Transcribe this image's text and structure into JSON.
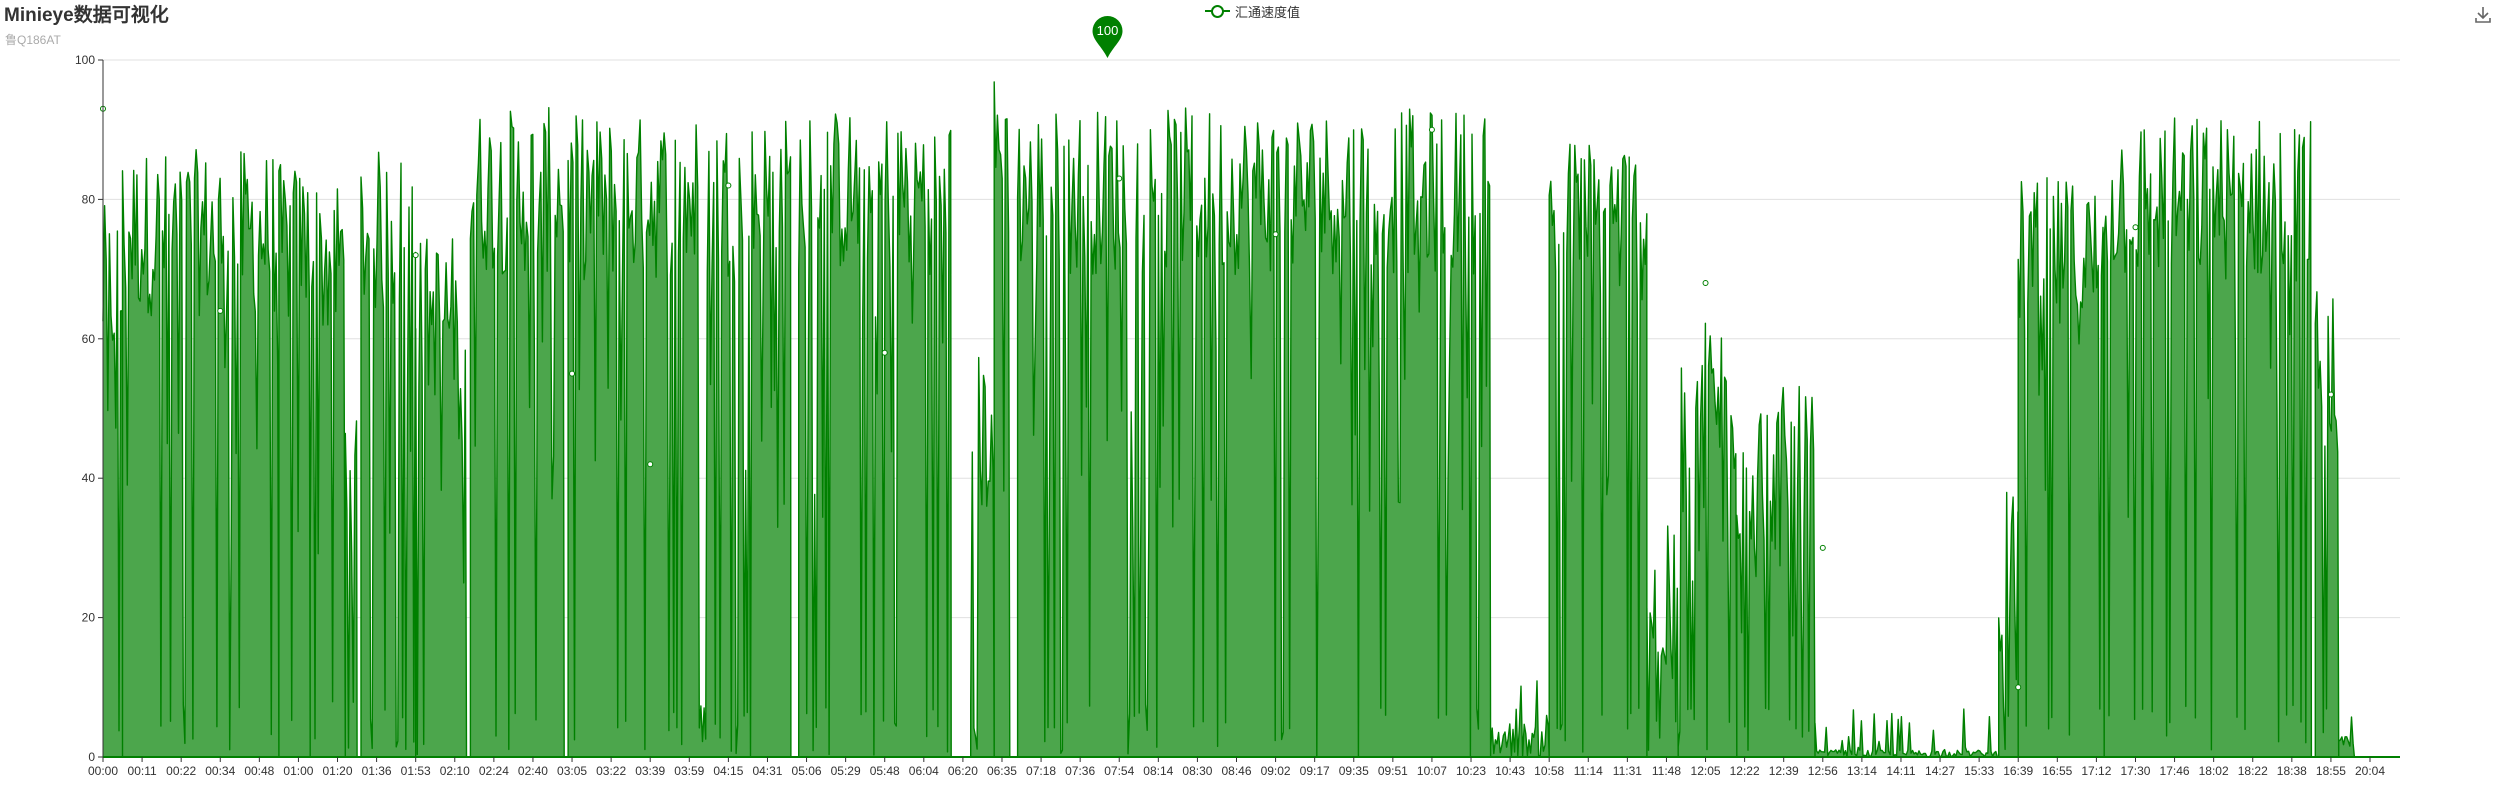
{
  "title": "Minieye数据可视化",
  "subtitle": "鲁Q186AT",
  "legend": {
    "label": "汇通速度值",
    "position": "top-center"
  },
  "toolbox": {
    "icon": "download-icon"
  },
  "colors": {
    "series": "#008000",
    "area": "#4ca64c",
    "grid": "#e0e0e0",
    "axis": "#333333"
  },
  "chart_data": {
    "type": "area",
    "title": "Minieye数据可视化",
    "subtitle": "鲁Q186AT",
    "xlabel": "",
    "ylabel": "",
    "ylim": [
      0,
      100
    ],
    "y_ticks": [
      0,
      20,
      40,
      60,
      80,
      100
    ],
    "grid": true,
    "legend_position": "top-center",
    "x_ticks": [
      "00:00",
      "00:11",
      "00:22",
      "00:34",
      "00:48",
      "01:00",
      "01:20",
      "01:36",
      "01:53",
      "02:10",
      "02:24",
      "02:40",
      "03:05",
      "03:22",
      "03:39",
      "03:59",
      "04:15",
      "04:31",
      "05:06",
      "05:29",
      "05:48",
      "06:04",
      "06:20",
      "06:35",
      "07:18",
      "07:36",
      "07:54",
      "08:14",
      "08:30",
      "08:46",
      "09:02",
      "09:17",
      "09:35",
      "09:51",
      "10:07",
      "10:23",
      "10:43",
      "10:58",
      "11:14",
      "11:31",
      "11:48",
      "12:05",
      "12:22",
      "12:39",
      "12:56",
      "13:14",
      "14:11",
      "14:27",
      "15:33",
      "16:39",
      "16:55",
      "17:12",
      "17:30",
      "17:46",
      "18:02",
      "18:22",
      "18:38",
      "18:55",
      "20:04"
    ],
    "series": [
      {
        "name": "汇通速度值",
        "mark_point": {
          "label": "100",
          "value": 100,
          "x": "07:49"
        },
        "segments": [
          {
            "from_tick": 0.0,
            "to_tick": 0.5,
            "level": 66
          },
          {
            "from_tick": 0.5,
            "to_tick": 4.5,
            "level": 74
          },
          {
            "from_tick": 4.5,
            "to_tick": 5.3,
            "level": 72
          },
          {
            "from_tick": 5.3,
            "to_tick": 6.2,
            "level": 70
          },
          {
            "from_tick": 6.2,
            "to_tick": 6.5,
            "level": 40
          },
          {
            "from_tick": 6.6,
            "to_tick": 8.0,
            "level": 74
          },
          {
            "from_tick": 8.0,
            "to_tick": 9.3,
            "level": 62
          },
          {
            "from_tick": 9.4,
            "to_tick": 11.8,
            "level": 80
          },
          {
            "from_tick": 11.9,
            "to_tick": 17.6,
            "level": 79
          },
          {
            "from_tick": 17.8,
            "to_tick": 21.7,
            "level": 80
          },
          {
            "from_tick": 22.2,
            "to_tick": 22.8,
            "level": 45
          },
          {
            "from_tick": 22.8,
            "to_tick": 23.2,
            "level": 85
          },
          {
            "from_tick": 23.4,
            "to_tick": 35.5,
            "level": 80
          },
          {
            "from_tick": 35.5,
            "to_tick": 37.0,
            "level": 5
          },
          {
            "from_tick": 37.0,
            "to_tick": 39.5,
            "level": 76
          },
          {
            "from_tick": 39.5,
            "to_tick": 40.3,
            "level": 20
          },
          {
            "from_tick": 40.3,
            "to_tick": 41.8,
            "level": 50
          },
          {
            "from_tick": 41.8,
            "to_tick": 43.8,
            "level": 40
          },
          {
            "from_tick": 43.8,
            "to_tick": 48.5,
            "level": 1
          },
          {
            "from_tick": 48.5,
            "to_tick": 49.0,
            "level": 25
          },
          {
            "from_tick": 49.0,
            "to_tick": 51.2,
            "level": 70
          },
          {
            "from_tick": 51.2,
            "to_tick": 56.5,
            "level": 79
          },
          {
            "from_tick": 56.6,
            "to_tick": 57.2,
            "level": 55
          },
          {
            "from_tick": 57.2,
            "to_tick": 57.6,
            "level": 3
          }
        ]
      }
    ]
  }
}
